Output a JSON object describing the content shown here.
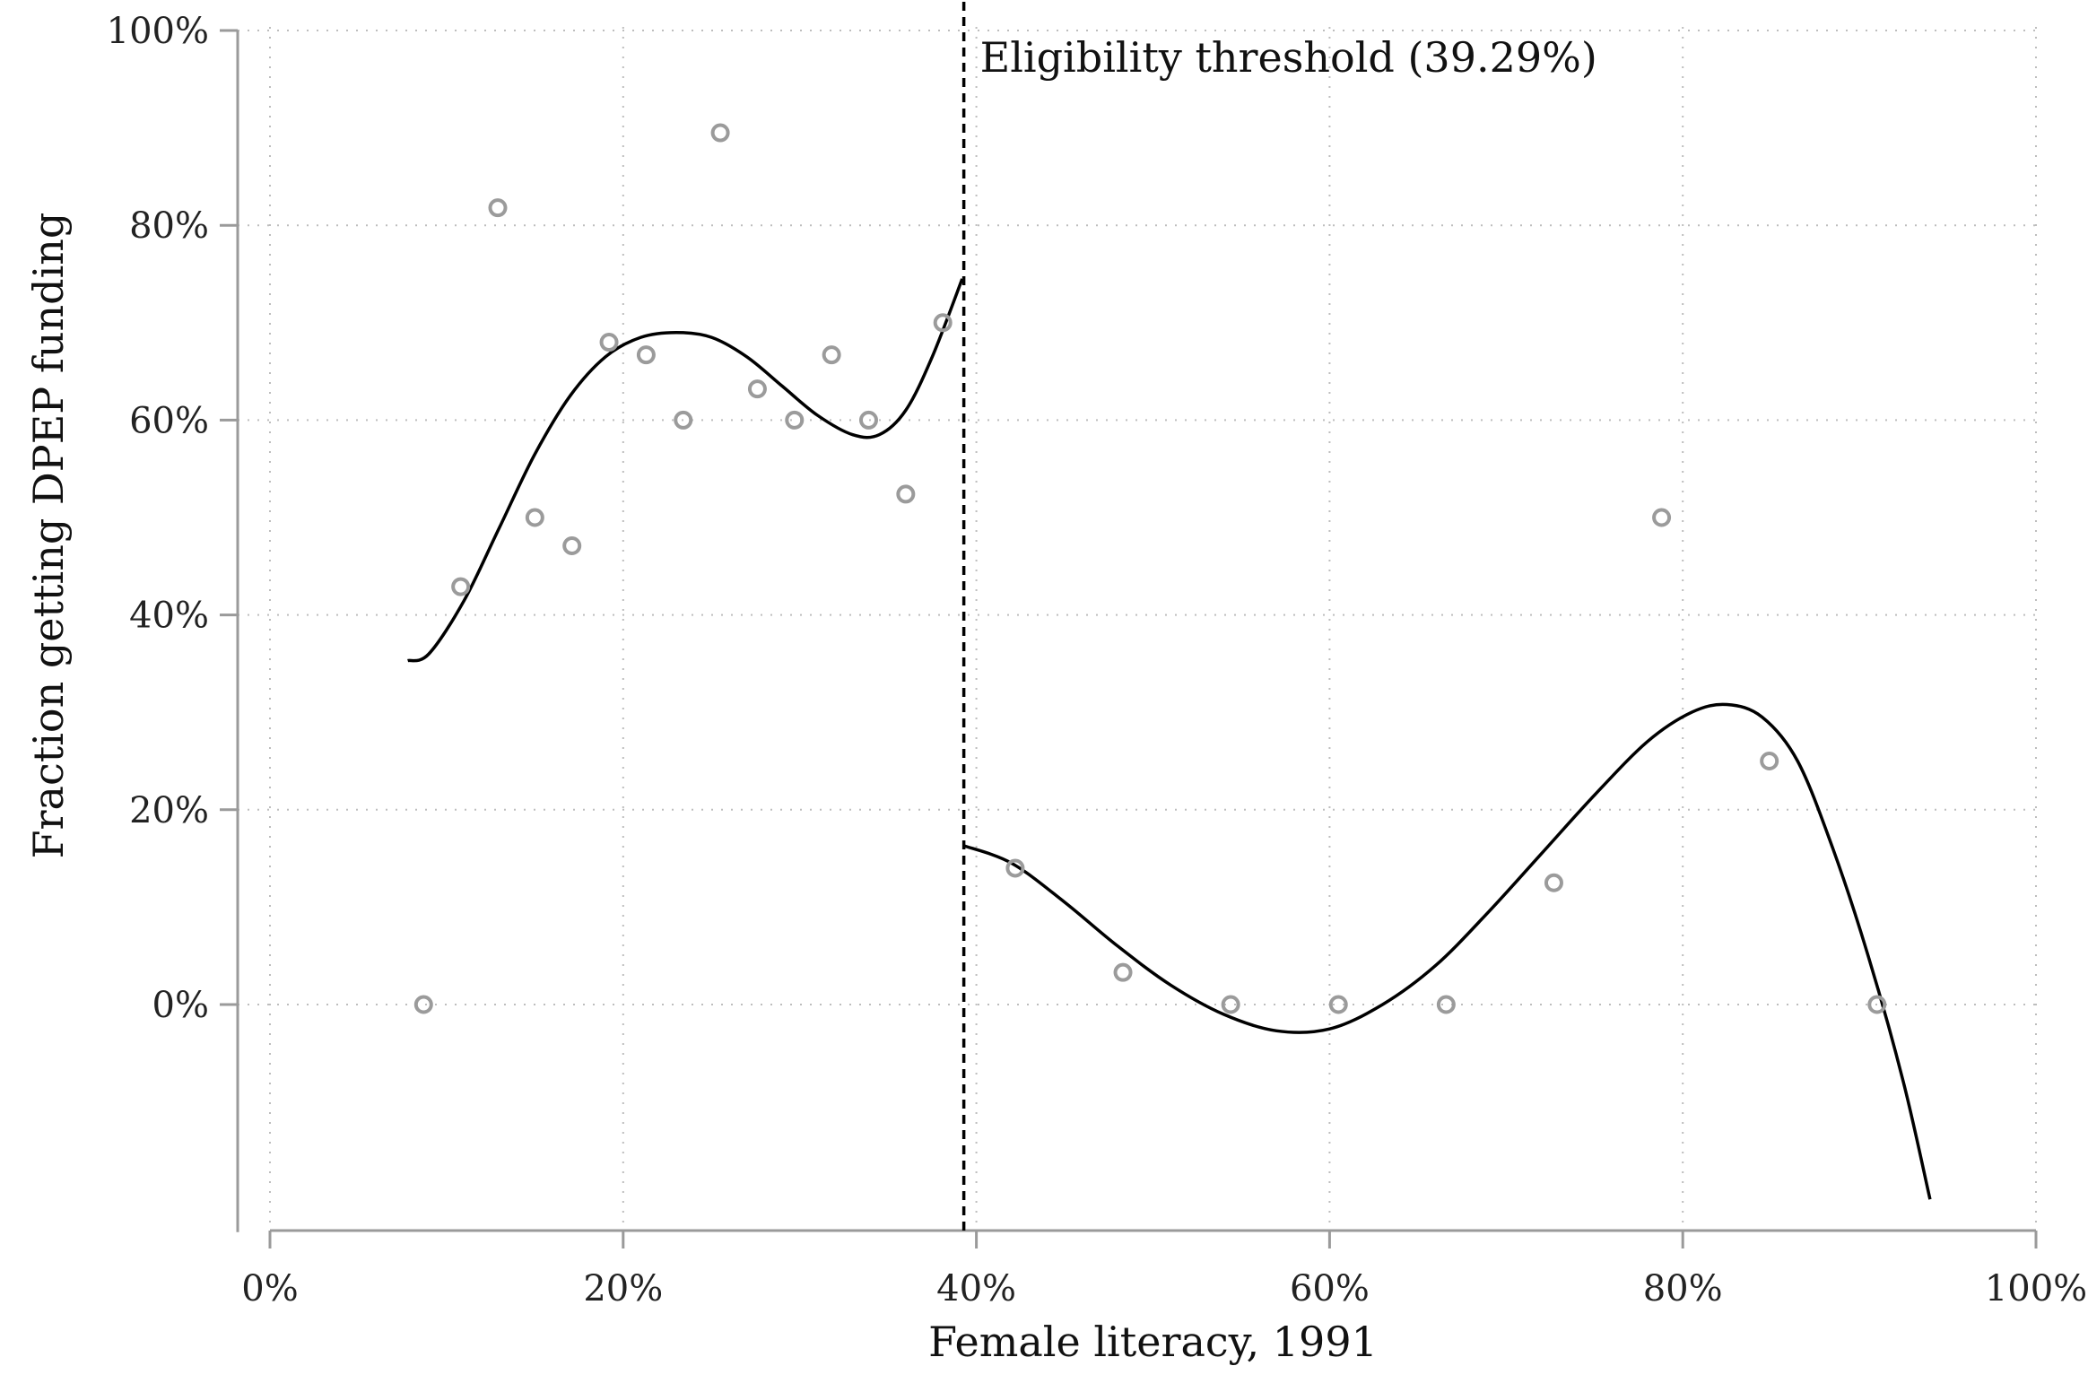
{
  "chart_data": {
    "type": "scatter",
    "title": "",
    "xlabel": "Female literacy, 1991",
    "ylabel": "Fraction getting DPEP funding",
    "xlim": [
      0,
      100
    ],
    "ylim": [
      -23,
      100
    ],
    "x_ticks": [
      0,
      20,
      40,
      60,
      80,
      100
    ],
    "x_tick_labels": [
      "0%",
      "20%",
      "40%",
      "60%",
      "80%",
      "100%"
    ],
    "y_ticks": [
      0,
      20,
      40,
      60,
      80,
      100
    ],
    "y_tick_labels": [
      "0%",
      "20%",
      "40%",
      "60%",
      "80%",
      "100%"
    ],
    "grid": true,
    "threshold": {
      "x": 39.29,
      "label": "Eligibility threshold (39.29%)"
    },
    "series": [
      {
        "type": "scatter",
        "color": "#9b9b9b",
        "points": [
          [
            8.7,
            0
          ],
          [
            10.8,
            42.9
          ],
          [
            12.9,
            81.8
          ],
          [
            15.0,
            50.0
          ],
          [
            17.1,
            47.1
          ],
          [
            19.2,
            68.0
          ],
          [
            21.3,
            66.7
          ],
          [
            23.4,
            60.0
          ],
          [
            25.5,
            89.5
          ],
          [
            27.6,
            63.2
          ],
          [
            29.7,
            60.0
          ],
          [
            31.8,
            66.7
          ],
          [
            33.9,
            60.0
          ],
          [
            36.0,
            52.4
          ],
          [
            38.1,
            70.0
          ],
          [
            42.2,
            14.0
          ],
          [
            48.3,
            3.3
          ],
          [
            54.4,
            0
          ],
          [
            60.5,
            0
          ],
          [
            66.6,
            0
          ],
          [
            72.7,
            12.5
          ],
          [
            78.8,
            50.0
          ],
          [
            84.9,
            25.0
          ],
          [
            91.0,
            0
          ]
        ]
      },
      {
        "type": "line",
        "color": "#000000",
        "segment": "left",
        "points": [
          [
            7.8,
            35.3
          ],
          [
            9.0,
            36.0
          ],
          [
            11.0,
            41.5
          ],
          [
            13.0,
            49.0
          ],
          [
            15.0,
            56.5
          ],
          [
            17.0,
            62.5
          ],
          [
            19.0,
            66.5
          ],
          [
            21.0,
            68.5
          ],
          [
            23.0,
            69.0
          ],
          [
            25.0,
            68.5
          ],
          [
            27.0,
            66.5
          ],
          [
            29.0,
            63.5
          ],
          [
            31.0,
            60.5
          ],
          [
            33.0,
            58.5
          ],
          [
            34.5,
            58.5
          ],
          [
            36.0,
            61.0
          ],
          [
            37.5,
            66.5
          ],
          [
            39.2,
            74.5
          ]
        ]
      },
      {
        "type": "line",
        "color": "#000000",
        "segment": "right",
        "points": [
          [
            39.3,
            16.3
          ],
          [
            42.0,
            14.5
          ],
          [
            45.0,
            10.5
          ],
          [
            48.0,
            6.0
          ],
          [
            51.0,
            2.0
          ],
          [
            54.0,
            -1.0
          ],
          [
            57.0,
            -2.7
          ],
          [
            60.0,
            -2.5
          ],
          [
            63.0,
            0
          ],
          [
            66.0,
            4.0
          ],
          [
            69.0,
            9.5
          ],
          [
            72.0,
            15.5
          ],
          [
            75.0,
            21.5
          ],
          [
            78.0,
            27.0
          ],
          [
            80.5,
            30.0
          ],
          [
            82.5,
            30.8
          ],
          [
            84.5,
            29.5
          ],
          [
            86.5,
            25.0
          ],
          [
            88.5,
            16.0
          ],
          [
            90.5,
            5.0
          ],
          [
            92.5,
            -8.0
          ],
          [
            94.0,
            -20.0
          ]
        ]
      }
    ]
  }
}
